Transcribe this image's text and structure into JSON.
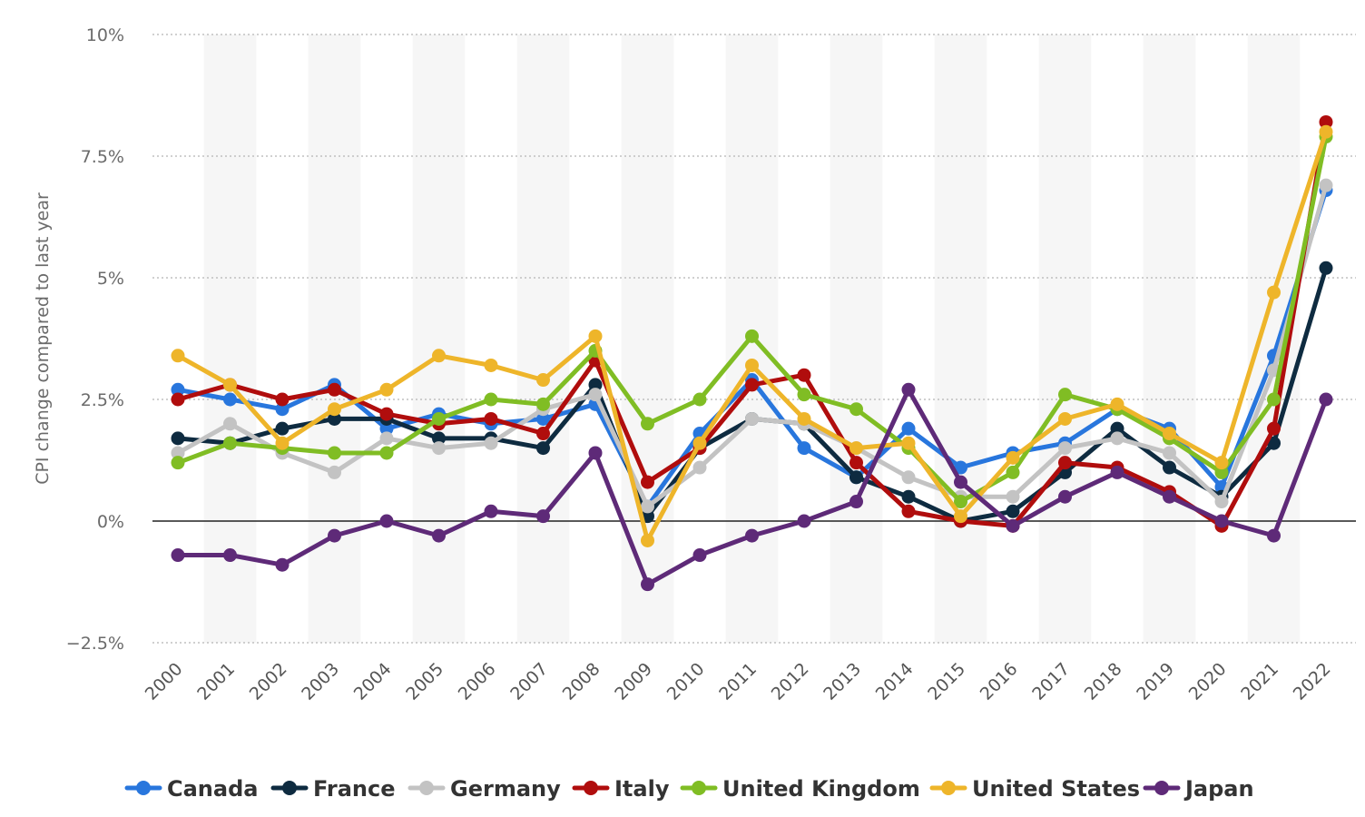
{
  "chart_data": {
    "type": "line",
    "ylabel": "CPI change compared to last year",
    "xlabel": "",
    "ylim": [
      -2.5,
      10
    ],
    "y_ticks": [
      {
        "value": 10,
        "label": "10%"
      },
      {
        "value": 7.5,
        "label": "7.5%"
      },
      {
        "value": 5,
        "label": "5%"
      },
      {
        "value": 2.5,
        "label": "2.5%"
      },
      {
        "value": 0,
        "label": "0%"
      },
      {
        "value": -2.5,
        "label": "−2.5%"
      }
    ],
    "grid": true,
    "legend_position": "bottom",
    "categories": [
      "2000",
      "2001",
      "2002",
      "2003",
      "2004",
      "2005",
      "2006",
      "2007",
      "2008",
      "2009",
      "2010",
      "2011",
      "2012",
      "2013",
      "2014",
      "2015",
      "2016",
      "2017",
      "2018",
      "2019",
      "2020",
      "2021",
      "2022"
    ],
    "series": [
      {
        "name": "Canada",
        "color": "#2876dd",
        "values": [
          2.7,
          2.5,
          2.3,
          2.8,
          1.9,
          2.2,
          2.0,
          2.1,
          2.4,
          0.3,
          1.8,
          2.9,
          1.5,
          0.9,
          1.9,
          1.1,
          1.4,
          1.6,
          2.3,
          1.9,
          0.7,
          3.4,
          6.8
        ]
      },
      {
        "name": "France",
        "color": "#0e2b40",
        "values": [
          1.7,
          1.6,
          1.9,
          2.1,
          2.1,
          1.7,
          1.7,
          1.5,
          2.8,
          0.1,
          1.5,
          2.1,
          2.0,
          0.9,
          0.5,
          0.0,
          0.2,
          1.0,
          1.9,
          1.1,
          0.5,
          1.6,
          5.2
        ]
      },
      {
        "name": "Germany",
        "color": "#c3c3c3",
        "values": [
          1.4,
          2.0,
          1.4,
          1.0,
          1.7,
          1.5,
          1.6,
          2.3,
          2.6,
          0.3,
          1.1,
          2.1,
          2.0,
          1.5,
          0.9,
          0.5,
          0.5,
          1.5,
          1.7,
          1.4,
          0.4,
          3.1,
          6.9
        ]
      },
      {
        "name": "Italy",
        "color": "#b00d0d",
        "values": [
          2.5,
          2.8,
          2.5,
          2.7,
          2.2,
          2.0,
          2.1,
          1.8,
          3.3,
          0.8,
          1.5,
          2.8,
          3.0,
          1.2,
          0.2,
          0.0,
          -0.1,
          1.2,
          1.1,
          0.6,
          -0.1,
          1.9,
          8.2
        ]
      },
      {
        "name": "United Kingdom",
        "color": "#80bd24",
        "values": [
          1.2,
          1.6,
          1.5,
          1.4,
          1.4,
          2.1,
          2.5,
          2.4,
          3.5,
          2.0,
          2.5,
          3.8,
          2.6,
          2.3,
          1.5,
          0.4,
          1.0,
          2.6,
          2.3,
          1.7,
          1.0,
          2.5,
          7.9
        ]
      },
      {
        "name": "United States",
        "color": "#eeb52a",
        "values": [
          3.4,
          2.8,
          1.6,
          2.3,
          2.7,
          3.4,
          3.2,
          2.9,
          3.8,
          -0.4,
          1.6,
          3.2,
          2.1,
          1.5,
          1.6,
          0.1,
          1.3,
          2.1,
          2.4,
          1.8,
          1.2,
          4.7,
          8.0
        ]
      },
      {
        "name": "Japan",
        "color": "#5e2a78",
        "values": [
          -0.7,
          -0.7,
          -0.9,
          -0.3,
          0.0,
          -0.3,
          0.2,
          0.1,
          1.4,
          -1.3,
          -0.7,
          -0.3,
          0.0,
          0.4,
          2.7,
          0.8,
          -0.1,
          0.5,
          1.0,
          0.5,
          0.0,
          -0.3,
          2.5
        ]
      }
    ]
  }
}
